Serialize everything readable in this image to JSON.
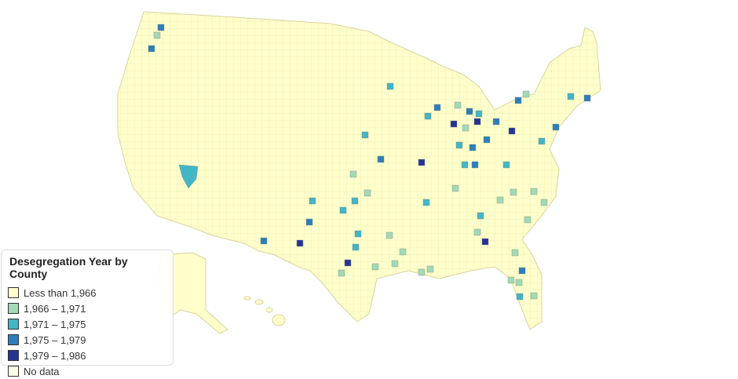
{
  "legend": {
    "title": "Desegregation Year by County",
    "items": [
      {
        "label": "Less than 1,966",
        "color": "#ffffcc"
      },
      {
        "label": "1,966 – 1,971",
        "color": "#a1dab4"
      },
      {
        "label": "1,971 – 1,975",
        "color": "#41b6c4"
      },
      {
        "label": "1,975 – 1,979",
        "color": "#2c7fb8"
      },
      {
        "label": "1,979 – 1,986",
        "color": "#253494"
      },
      {
        "label": "No data",
        "color": "#fffde6"
      }
    ]
  },
  "map": {
    "border_color": "#e8e2a8",
    "land_color": "#ffffcc"
  }
}
